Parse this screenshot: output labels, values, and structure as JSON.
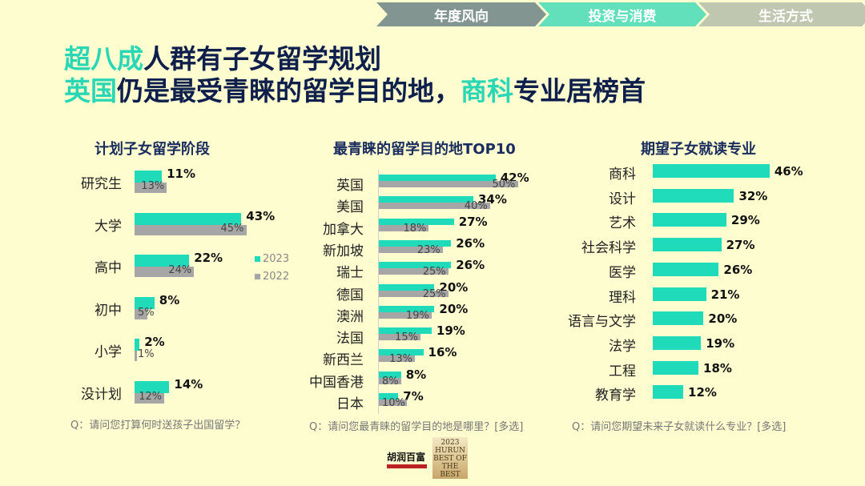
{
  "nav": {
    "tabs": [
      {
        "label": "年度风向",
        "color": "#839590"
      },
      {
        "label": "投资与消费",
        "color": "#62e0bb",
        "active": true
      },
      {
        "label": "生活方式",
        "color": "#c0c7b0"
      }
    ]
  },
  "headline": {
    "line1_hl": "超八成",
    "line1_rest": "人群有子女留学规划",
    "line2_hl1": "英国",
    "line2_mid": "仍是最受青睐的留学目的地，",
    "line2_hl2": "商科",
    "line2_rest": "专业居榜首"
  },
  "colors": {
    "bg": "#fefdd0",
    "accent": "#1fdbba",
    "gray": "#a6a6a6",
    "navy": "#0e1f4c"
  },
  "logos": {
    "hurun": "胡润百富",
    "best_year": "2023",
    "best_top": "HURUN",
    "best_mid": "BEST OF THE BEST",
    "best_bottom": "胡润至尚优品"
  },
  "chart_data": [
    {
      "type": "bar",
      "title": "计划子女留学阶段",
      "categories": [
        "研究生",
        "大学",
        "高中",
        "初中",
        "小学",
        "没计划"
      ],
      "series": [
        {
          "name": "2023",
          "values": [
            11,
            43,
            22,
            8,
            2,
            14
          ]
        },
        {
          "name": "2022",
          "values": [
            13,
            45,
            24,
            5,
            1,
            12
          ]
        }
      ],
      "legend": [
        "2023",
        "2022"
      ],
      "legend_position": "right",
      "question": "Q：请问您打算何时送孩子出国留学？"
    },
    {
      "type": "bar",
      "title": "最青睐的留学目的地TOP10",
      "categories": [
        "英国",
        "美国",
        "加拿大",
        "新加坡",
        "瑞士",
        "德国",
        "澳洲",
        "法国",
        "新西兰",
        "中国香港",
        "日本"
      ],
      "series": [
        {
          "name": "2023",
          "values": [
            42,
            34,
            27,
            26,
            26,
            20,
            20,
            19,
            16,
            8,
            7
          ]
        },
        {
          "name": "2022",
          "values": [
            50,
            40,
            18,
            23,
            25,
            25,
            19,
            15,
            13,
            8,
            10
          ]
        }
      ],
      "question": "Q：请问您最青睐的留学目的地是哪里？[多选]"
    },
    {
      "type": "bar",
      "title": "期望子女就读专业",
      "categories": [
        "商科",
        "设计",
        "艺术",
        "社会科学",
        "医学",
        "理科",
        "语言与文学",
        "法学",
        "工程",
        "教育学"
      ],
      "series": [
        {
          "name": "2023",
          "values": [
            46,
            32,
            29,
            27,
            26,
            21,
            20,
            19,
            18,
            12
          ]
        }
      ],
      "question": "Q：请问您期望未来子女就读什么专业？[多选]"
    }
  ]
}
